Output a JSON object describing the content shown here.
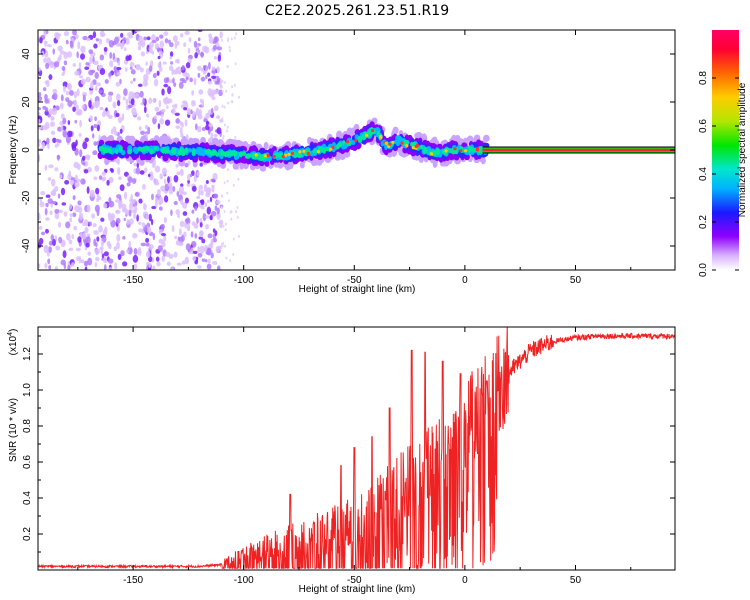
{
  "title": "C2E2.2025.261.23.51.R19",
  "chart_data": [
    {
      "type": "heatmap",
      "name": "spectrogram",
      "xlabel": "Height of straight line (km)",
      "ylabel": "Frequency (Hz)",
      "xlim": [
        -193,
        95
      ],
      "ylim": [
        -50,
        50
      ],
      "xticks": [
        -150,
        -100,
        -50,
        0,
        50
      ],
      "yticks": [
        -40,
        -20,
        0,
        20,
        40
      ],
      "colorbar": {
        "label": "Normalized spectral amplitude",
        "range": [
          0,
          1
        ],
        "ticks": [
          0.0,
          0.2,
          0.4,
          0.6,
          0.8
        ],
        "colors": [
          "#ffffff",
          "#d9b3ff",
          "#8f00ff",
          "#1a1aff",
          "#00b3ff",
          "#00e6cc",
          "#00e600",
          "#b3e600",
          "#ffcc00",
          "#ff6600",
          "#ff0033",
          "#ff0066"
        ]
      },
      "ridge": {
        "x": [
          -160,
          -140,
          -120,
          -100,
          -90,
          -80,
          -70,
          -60,
          -50,
          -45,
          -40,
          -37,
          -35,
          -30,
          -25,
          -20,
          -15,
          -10,
          -5,
          0,
          5,
          8,
          95
        ],
        "frequency": [
          0,
          0,
          -1,
          -2,
          -3,
          -2,
          -1,
          1,
          4,
          6,
          9,
          3,
          2,
          4,
          2,
          1,
          -1,
          -1,
          0,
          0,
          0,
          0,
          0
        ]
      },
      "noise_region_x": [
        -193,
        -110
      ]
    },
    {
      "type": "line",
      "name": "snr",
      "xlabel": "Height of straight line (km)",
      "ylabel": "SNR (10 * v/v)",
      "y_multiplier": "(x10",
      "y_multiplier_exp": "4",
      "xlim": [
        -193,
        95
      ],
      "ylim": [
        0,
        1.35
      ],
      "xticks": [
        -150,
        -100,
        -50,
        0,
        50
      ],
      "yticks": [
        0.2,
        0.4,
        0.6,
        0.8,
        1.0,
        1.2
      ],
      "color": "#ee2222",
      "trend": {
        "x": [
          -193,
          -120,
          -110,
          -105,
          -100,
          -90,
          -80,
          -70,
          -60,
          -50,
          -40,
          -30,
          -20,
          -10,
          0,
          10,
          20,
          30,
          40,
          50,
          60,
          70,
          80,
          95
        ],
        "y": [
          0.02,
          0.02,
          0.03,
          0.05,
          0.08,
          0.12,
          0.15,
          0.18,
          0.22,
          0.27,
          0.35,
          0.45,
          0.55,
          0.65,
          0.8,
          0.95,
          1.1,
          1.22,
          1.27,
          1.29,
          1.3,
          1.3,
          1.3,
          1.3
        ]
      },
      "peaks": [
        {
          "x": -79,
          "y": 0.42
        },
        {
          "x": -56,
          "y": 0.58
        },
        {
          "x": -50,
          "y": 0.68
        },
        {
          "x": -42,
          "y": 0.74
        },
        {
          "x": -34,
          "y": 0.9
        },
        {
          "x": -24,
          "y": 1.22
        },
        {
          "x": -18,
          "y": 1.21
        },
        {
          "x": -10,
          "y": 1.16
        },
        {
          "x": -2,
          "y": 1.09
        },
        {
          "x": 10,
          "y": 1.05
        }
      ]
    }
  ]
}
